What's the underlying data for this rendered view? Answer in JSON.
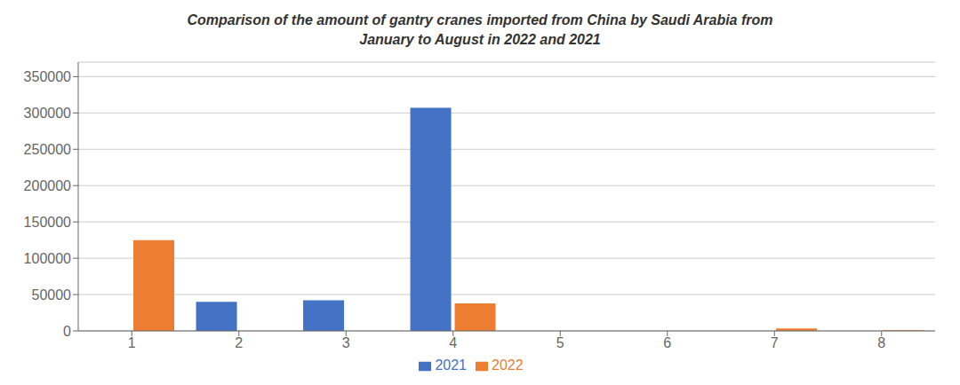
{
  "chart_data": {
    "type": "bar",
    "title": "Comparison of the amount of gantry cranes imported from China by Saudi Arabia from\nJanuary to August in 2022 and 2021",
    "categories": [
      1,
      2,
      3,
      4,
      5,
      6,
      7,
      8
    ],
    "series": [
      {
        "name": "2021",
        "color": "#4472C4",
        "values": [
          0,
          40000,
          42000,
          307000,
          0,
          0,
          0,
          0
        ]
      },
      {
        "name": "2022",
        "color": "#ED7D31",
        "values": [
          125000,
          0,
          0,
          38000,
          0,
          0,
          3500,
          800
        ]
      }
    ],
    "ylim": [
      0,
      370000
    ],
    "yticks": [
      0,
      50000,
      100000,
      150000,
      200000,
      250000,
      300000,
      350000
    ],
    "grid": true,
    "legend": "bottom"
  }
}
